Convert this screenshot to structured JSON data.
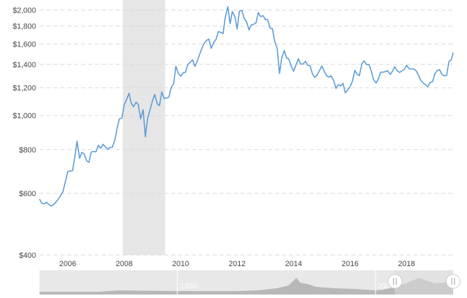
{
  "chart_data": {
    "type": "line",
    "title": "",
    "xlabel": "",
    "ylabel": "",
    "yscale": "log",
    "ylim": [
      400,
      2060
    ],
    "xlim": [
      2005.0,
      2019.65
    ],
    "grid": true,
    "legend": "none",
    "colors": {
      "line": "#5b9bd5",
      "recession": "#e6e6e6",
      "grid": "#d9d9d9",
      "navigator": "#e8e8e8",
      "navigator_area": "#b8b8b8"
    },
    "y_ticks": [
      {
        "value": 400,
        "label": "$400"
      },
      {
        "value": 600,
        "label": "$600"
      },
      {
        "value": 800,
        "label": "$800"
      },
      {
        "value": 1000,
        "label": "$1,000"
      },
      {
        "value": 1200,
        "label": "$1,200"
      },
      {
        "value": 1400,
        "label": "$1,400"
      },
      {
        "value": 1600,
        "label": "$1,600"
      },
      {
        "value": 1800,
        "label": "$1,800"
      },
      {
        "value": 2000,
        "label": "$2,000"
      }
    ],
    "x_ticks": [
      {
        "value": 2006,
        "label": "2006"
      },
      {
        "value": 2008,
        "label": "2008"
      },
      {
        "value": 2010,
        "label": "2010"
      },
      {
        "value": 2012,
        "label": "2012"
      },
      {
        "value": 2014,
        "label": "2014"
      },
      {
        "value": 2016,
        "label": "2016"
      },
      {
        "value": 2018,
        "label": "2018"
      }
    ],
    "shaded_ranges": [
      {
        "x0": 2007.95,
        "x1": 2009.45
      }
    ],
    "series": [
      {
        "points": [
          [
            2005.0,
            578
          ],
          [
            2005.08,
            562
          ],
          [
            2005.17,
            560
          ],
          [
            2005.25,
            566
          ],
          [
            2005.33,
            558
          ],
          [
            2005.42,
            552
          ],
          [
            2005.5,
            557
          ],
          [
            2005.58,
            566
          ],
          [
            2005.67,
            578
          ],
          [
            2005.75,
            592
          ],
          [
            2005.83,
            606
          ],
          [
            2005.92,
            650
          ],
          [
            2006.0,
            692
          ],
          [
            2006.08,
            695
          ],
          [
            2006.17,
            696
          ],
          [
            2006.25,
            760
          ],
          [
            2006.33,
            845
          ],
          [
            2006.42,
            755
          ],
          [
            2006.5,
            785
          ],
          [
            2006.58,
            778
          ],
          [
            2006.67,
            742
          ],
          [
            2006.75,
            736
          ],
          [
            2006.83,
            787
          ],
          [
            2006.92,
            790
          ],
          [
            2007.0,
            788
          ],
          [
            2007.08,
            822
          ],
          [
            2007.17,
            806
          ],
          [
            2007.25,
            828
          ],
          [
            2007.33,
            815
          ],
          [
            2007.42,
            800
          ],
          [
            2007.5,
            812
          ],
          [
            2007.58,
            812
          ],
          [
            2007.67,
            852
          ],
          [
            2007.75,
            922
          ],
          [
            2007.83,
            978
          ],
          [
            2007.92,
            985
          ],
          [
            2008.0,
            1075
          ],
          [
            2008.08,
            1108
          ],
          [
            2008.17,
            1158
          ],
          [
            2008.25,
            1085
          ],
          [
            2008.33,
            1060
          ],
          [
            2008.42,
            1092
          ],
          [
            2008.5,
            1075
          ],
          [
            2008.58,
            978
          ],
          [
            2008.67,
            1038
          ],
          [
            2008.75,
            870
          ],
          [
            2008.83,
            984
          ],
          [
            2008.92,
            1040
          ],
          [
            2009.0,
            1102
          ],
          [
            2009.08,
            1148
          ],
          [
            2009.17,
            1080
          ],
          [
            2009.25,
            1068
          ],
          [
            2009.33,
            1168
          ],
          [
            2009.42,
            1118
          ],
          [
            2009.5,
            1122
          ],
          [
            2009.58,
            1128
          ],
          [
            2009.67,
            1205
          ],
          [
            2009.75,
            1232
          ],
          [
            2009.83,
            1382
          ],
          [
            2009.92,
            1318
          ],
          [
            2010.0,
            1295
          ],
          [
            2010.08,
            1322
          ],
          [
            2010.17,
            1330
          ],
          [
            2010.25,
            1395
          ],
          [
            2010.33,
            1418
          ],
          [
            2010.42,
            1442
          ],
          [
            2010.5,
            1382
          ],
          [
            2010.58,
            1422
          ],
          [
            2010.67,
            1495
          ],
          [
            2010.75,
            1555
          ],
          [
            2010.83,
            1605
          ],
          [
            2010.92,
            1640
          ],
          [
            2011.0,
            1652
          ],
          [
            2011.08,
            1555
          ],
          [
            2011.17,
            1615
          ],
          [
            2011.25,
            1648
          ],
          [
            2011.33,
            1735
          ],
          [
            2011.42,
            1728
          ],
          [
            2011.5,
            1712
          ],
          [
            2011.58,
            1905
          ],
          [
            2011.67,
            2045
          ],
          [
            2011.75,
            1830
          ],
          [
            2011.83,
            1980
          ],
          [
            2011.92,
            1915
          ],
          [
            2012.0,
            1765
          ],
          [
            2012.08,
            1985
          ],
          [
            2012.17,
            1995
          ],
          [
            2012.25,
            1890
          ],
          [
            2012.33,
            1855
          ],
          [
            2012.42,
            1755
          ],
          [
            2012.5,
            1812
          ],
          [
            2012.58,
            1820
          ],
          [
            2012.67,
            1840
          ],
          [
            2012.75,
            1968
          ],
          [
            2012.83,
            1915
          ],
          [
            2012.92,
            1928
          ],
          [
            2013.0,
            1878
          ],
          [
            2013.08,
            1878
          ],
          [
            2013.17,
            1775
          ],
          [
            2013.25,
            1770
          ],
          [
            2013.33,
            1625
          ],
          [
            2013.42,
            1555
          ],
          [
            2013.5,
            1318
          ],
          [
            2013.58,
            1460
          ],
          [
            2013.67,
            1532
          ],
          [
            2013.75,
            1460
          ],
          [
            2013.83,
            1450
          ],
          [
            2013.92,
            1380
          ],
          [
            2014.0,
            1338
          ],
          [
            2014.08,
            1392
          ],
          [
            2014.17,
            1452
          ],
          [
            2014.25,
            1402
          ],
          [
            2014.33,
            1402
          ],
          [
            2014.42,
            1428
          ],
          [
            2014.5,
            1392
          ],
          [
            2014.58,
            1388
          ],
          [
            2014.67,
            1312
          ],
          [
            2014.75,
            1285
          ],
          [
            2014.83,
            1305
          ],
          [
            2014.92,
            1345
          ],
          [
            2015.0,
            1385
          ],
          [
            2015.08,
            1340
          ],
          [
            2015.17,
            1298
          ],
          [
            2015.25,
            1288
          ],
          [
            2015.33,
            1298
          ],
          [
            2015.42,
            1258
          ],
          [
            2015.5,
            1195
          ],
          [
            2015.58,
            1225
          ],
          [
            2015.67,
            1215
          ],
          [
            2015.75,
            1235
          ],
          [
            2015.83,
            1162
          ],
          [
            2015.92,
            1185
          ],
          [
            2016.0,
            1210
          ],
          [
            2016.08,
            1252
          ],
          [
            2016.17,
            1345
          ],
          [
            2016.25,
            1312
          ],
          [
            2016.33,
            1300
          ],
          [
            2016.42,
            1408
          ],
          [
            2016.5,
            1432
          ],
          [
            2016.58,
            1398
          ],
          [
            2016.67,
            1398
          ],
          [
            2016.75,
            1342
          ],
          [
            2016.83,
            1268
          ],
          [
            2016.92,
            1238
          ],
          [
            2017.0,
            1270
          ],
          [
            2017.08,
            1328
          ],
          [
            2017.17,
            1330
          ],
          [
            2017.25,
            1335
          ],
          [
            2017.33,
            1342
          ],
          [
            2017.42,
            1310
          ],
          [
            2017.5,
            1338
          ],
          [
            2017.58,
            1378
          ],
          [
            2017.67,
            1342
          ],
          [
            2017.75,
            1328
          ],
          [
            2017.83,
            1340
          ],
          [
            2017.92,
            1355
          ],
          [
            2018.0,
            1392
          ],
          [
            2018.08,
            1362
          ],
          [
            2018.17,
            1358
          ],
          [
            2018.25,
            1358
          ],
          [
            2018.33,
            1345
          ],
          [
            2018.42,
            1305
          ],
          [
            2018.5,
            1262
          ],
          [
            2018.58,
            1240
          ],
          [
            2018.67,
            1225
          ],
          [
            2018.75,
            1208
          ],
          [
            2018.83,
            1242
          ],
          [
            2018.92,
            1250
          ],
          [
            2019.0,
            1315
          ],
          [
            2019.08,
            1342
          ],
          [
            2019.17,
            1352
          ],
          [
            2019.25,
            1312
          ],
          [
            2019.33,
            1298
          ],
          [
            2019.42,
            1302
          ],
          [
            2019.5,
            1425
          ],
          [
            2019.58,
            1440
          ],
          [
            2019.65,
            1512
          ]
        ]
      }
    ],
    "navigator": {
      "labels": [
        {
          "value": 1950,
          "label": "1950"
        },
        {
          "value": 2005,
          "label": "200"
        }
      ],
      "handle_icon": "grip-lines-icon"
    }
  }
}
